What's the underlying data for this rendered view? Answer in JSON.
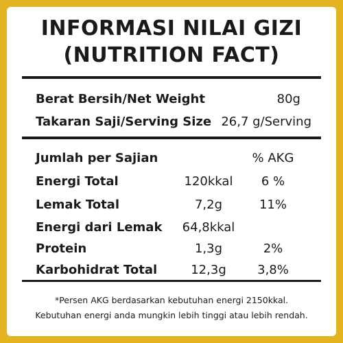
{
  "header": {
    "title_line1": "INFORMASI NILAI GIZI",
    "title_line2": "(NUTRITION FACT)"
  },
  "package": {
    "net_weight": {
      "label": "Berat Bersih/Net Weight",
      "value": "80g"
    },
    "serving_size": {
      "label": "Takaran Saji/Serving Size",
      "value": "26,7 g/Serving"
    }
  },
  "per_serving": {
    "heading": "Jumlah per Sajian",
    "akg_header": "% AKG",
    "rows": [
      {
        "label": "Energi Total",
        "amount": "120kkal",
        "akg": "6 %"
      },
      {
        "label": "Lemak Total",
        "amount": "7,2g",
        "akg": "11%"
      },
      {
        "label": "Energi dari Lemak",
        "amount": "64,8kkal",
        "akg": ""
      },
      {
        "label": "Protein",
        "amount": "1,3g",
        "akg": "2%"
      },
      {
        "label": "Karbohidrat Total",
        "amount": "12,3g",
        "akg": "3,8%"
      }
    ]
  },
  "footnote": {
    "line1": "*Persen AKG berdasarkan kebutuhan energi 2150kkal.",
    "line2": "Kebutuhan energi anda mungkin lebih tinggi atau lebih rendah."
  },
  "colors": {
    "border": "#e3b320",
    "panel": "#ffffff",
    "text": "#1a1a1a"
  }
}
